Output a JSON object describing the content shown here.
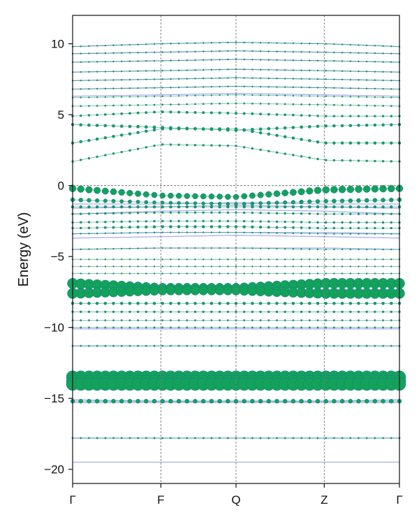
{
  "chart_data": {
    "type": "scatter",
    "title": "",
    "xlabel": "",
    "ylabel": "Energy (eV)",
    "ylim": [
      -21,
      12
    ],
    "grid": true,
    "legend": "none",
    "kpoints": [
      {
        "label": "Γ",
        "x": 0.0
      },
      {
        "label": "F",
        "x": 0.27
      },
      {
        "label": "Q",
        "x": 0.5
      },
      {
        "label": "Z",
        "x": 0.77
      },
      {
        "label": "Γ",
        "x": 1.0
      }
    ],
    "yticks": [
      {
        "value": 10,
        "label": "10"
      },
      {
        "value": 5,
        "label": "5"
      },
      {
        "value": 0,
        "label": "0"
      },
      {
        "value": -5,
        "label": "−5"
      },
      {
        "value": -10,
        "label": "−10"
      },
      {
        "value": -15,
        "label": "−15"
      },
      {
        "value": -20,
        "label": "−20"
      }
    ],
    "series": [
      {
        "role": "band-lines",
        "color": "#a8aef2",
        "bands": [
          {
            "x": [
              0,
              0.27,
              0.5,
              0.77,
              1
            ],
            "y": [
              -19.5,
              -19.5,
              -19.5,
              -19.5,
              -19.5
            ]
          },
          {
            "x": [
              0,
              0.27,
              0.5,
              0.77,
              1
            ],
            "y": [
              -17.8,
              -17.8,
              -17.8,
              -17.8,
              -17.8
            ]
          },
          {
            "x": [
              0,
              0.27,
              0.5,
              0.77,
              1
            ],
            "y": [
              -15.3,
              -15.3,
              -15.3,
              -15.3,
              -15.3
            ]
          },
          {
            "x": [
              0,
              0.27,
              0.5,
              0.77,
              1
            ],
            "y": [
              -15.1,
              -15.2,
              -15.2,
              -15.2,
              -15.1
            ]
          },
          {
            "x": [
              0,
              0.27,
              0.5,
              0.77,
              1
            ],
            "y": [
              -11.3,
              -11.3,
              -11.3,
              -11.3,
              -11.3
            ]
          },
          {
            "x": [
              0,
              0.27,
              0.5,
              0.77,
              1
            ],
            "y": [
              -10.1,
              -10.1,
              -10.1,
              -10.1,
              -10.1
            ]
          },
          {
            "x": [
              0,
              0.27,
              0.5,
              0.77,
              1
            ],
            "y": [
              -4.5,
              -4.4,
              -4.4,
              -4.4,
              -4.5
            ]
          },
          {
            "x": [
              0,
              0.27,
              0.5,
              0.77,
              1
            ],
            "y": [
              -3.7,
              -3.6,
              -3.5,
              -3.6,
              -3.7
            ]
          },
          {
            "x": [
              0,
              0.27,
              0.5,
              0.77,
              1
            ],
            "y": [
              -3.4,
              -3.3,
              -3.3,
              -3.3,
              -3.4
            ]
          },
          {
            "x": [
              0,
              0.27,
              0.5,
              0.77,
              1
            ],
            "y": [
              -2.0,
              -1.8,
              -1.7,
              -1.8,
              -2.0
            ]
          },
          {
            "x": [
              0,
              0.27,
              0.5,
              0.77,
              1
            ],
            "y": [
              -1.6,
              -1.5,
              -1.4,
              -1.5,
              -1.6
            ]
          },
          {
            "x": [
              0,
              0.27,
              0.5,
              0.77,
              1
            ],
            "y": [
              -1.3,
              -1.3,
              -1.2,
              -1.3,
              -1.3
            ]
          },
          {
            "x": [
              0,
              0.27,
              0.5,
              0.77,
              1
            ],
            "y": [
              6.3,
              6.4,
              6.5,
              6.4,
              6.3
            ]
          },
          {
            "x": [
              0,
              0.27,
              0.5,
              0.77,
              1
            ],
            "y": [
              6.8,
              6.9,
              7.0,
              6.9,
              6.8
            ]
          },
          {
            "x": [
              0,
              0.27,
              0.5,
              0.77,
              1
            ],
            "y": [
              7.4,
              7.5,
              7.6,
              7.5,
              7.4
            ]
          },
          {
            "x": [
              0,
              0.27,
              0.5,
              0.77,
              1
            ],
            "y": [
              8.0,
              8.1,
              8.2,
              8.1,
              8.0
            ]
          },
          {
            "x": [
              0,
              0.27,
              0.5,
              0.77,
              1
            ],
            "y": [
              8.7,
              8.8,
              8.9,
              8.8,
              8.7
            ]
          },
          {
            "x": [
              0,
              0.27,
              0.5,
              0.77,
              1
            ],
            "y": [
              9.3,
              9.4,
              9.5,
              9.4,
              9.3
            ]
          },
          {
            "x": [
              0,
              0.27,
              0.5,
              0.77,
              1
            ],
            "y": [
              9.8,
              10.0,
              10.1,
              10.0,
              9.8
            ]
          }
        ]
      },
      {
        "role": "projected-bands",
        "color": "#12a358",
        "edge_color": "#1f6fb0",
        "bands": [
          {
            "y": [
              1.7,
              2.9,
              2.8,
              1.8,
              1.7
            ],
            "w": [
              1.5,
              1.5,
              1.5,
              1.5,
              1.5
            ]
          },
          {
            "y": [
              3.0,
              4.0,
              4.0,
              3.0,
              3.0
            ],
            "w": [
              2,
              2,
              2,
              2,
              2
            ]
          },
          {
            "y": [
              4.3,
              4.1,
              3.9,
              4.2,
              4.3
            ],
            "w": [
              2,
              2.2,
              2.2,
              2,
              2
            ]
          },
          {
            "y": [
              4.9,
              5.2,
              5.1,
              4.9,
              4.9
            ],
            "w": [
              1.5,
              1.8,
              1.8,
              1.5,
              1.5
            ]
          },
          {
            "y": [
              5.6,
              5.7,
              5.8,
              5.7,
              5.6
            ],
            "w": [
              1.2,
              1.2,
              1.2,
              1.2,
              1.2
            ]
          },
          {
            "y": [
              6.2,
              6.3,
              6.4,
              6.3,
              6.2
            ],
            "w": [
              1,
              1,
              1,
              1,
              1
            ]
          },
          {
            "y": [
              6.8,
              6.9,
              7.0,
              6.9,
              6.8
            ],
            "w": [
              1,
              1,
              1,
              1,
              1
            ]
          },
          {
            "y": [
              7.4,
              7.5,
              7.6,
              7.5,
              7.4
            ],
            "w": [
              1,
              1,
              1,
              1,
              1
            ]
          },
          {
            "y": [
              8.0,
              8.1,
              8.2,
              8.1,
              8.0
            ],
            "w": [
              1,
              1,
              1,
              1,
              1
            ]
          },
          {
            "y": [
              8.7,
              8.8,
              8.9,
              8.8,
              8.7
            ],
            "w": [
              1,
              1,
              1,
              1,
              1
            ]
          },
          {
            "y": [
              9.3,
              9.4,
              9.5,
              9.4,
              9.3
            ],
            "w": [
              1,
              1,
              1,
              1,
              1
            ]
          },
          {
            "y": [
              9.8,
              10.0,
              10.1,
              10.0,
              9.8
            ],
            "w": [
              1,
              1,
              1,
              1,
              1
            ]
          },
          {
            "y": [
              -0.2,
              -0.7,
              -0.8,
              -0.3,
              -0.2
            ],
            "w": [
              5,
              4,
              4,
              5,
              5
            ]
          },
          {
            "y": [
              -1.0,
              -1.2,
              -1.3,
              -1.1,
              -1.0
            ],
            "w": [
              3,
              2.5,
              2.5,
              3,
              3
            ]
          },
          {
            "y": [
              -1.5,
              -1.5,
              -1.5,
              -1.5,
              -1.5
            ],
            "w": [
              2,
              2,
              2,
              2,
              2
            ]
          },
          {
            "y": [
              -2.0,
              -1.9,
              -1.9,
              -2.0,
              -2.0
            ],
            "w": [
              1.5,
              1.5,
              1.5,
              1.5,
              1.5
            ]
          },
          {
            "y": [
              -2.6,
              -2.5,
              -2.5,
              -2.6,
              -2.6
            ],
            "w": [
              1.5,
              1.5,
              1.5,
              1.5,
              1.5
            ]
          },
          {
            "y": [
              -3.0,
              -2.9,
              -2.9,
              -3.0,
              -3.0
            ],
            "w": [
              1.5,
              2,
              2,
              1.5,
              1.5
            ]
          },
          {
            "y": [
              -3.4,
              -3.3,
              -3.3,
              -3.4,
              -3.4
            ],
            "w": [
              1,
              1,
              1,
              1,
              1
            ]
          },
          {
            "y": [
              -4.5,
              -4.4,
              -4.4,
              -4.5,
              -4.5
            ],
            "w": [
              1,
              1,
              1,
              1,
              1
            ]
          },
          {
            "y": [
              -5.2,
              -5.2,
              -5.2,
              -5.2,
              -5.2
            ],
            "w": [
              1,
              1,
              1,
              1,
              1
            ]
          },
          {
            "y": [
              -5.7,
              -5.7,
              -5.7,
              -5.7,
              -5.7
            ],
            "w": [
              1,
              1,
              1,
              1,
              1
            ]
          },
          {
            "y": [
              -6.2,
              -6.2,
              -6.2,
              -6.2,
              -6.2
            ],
            "w": [
              1,
              1,
              1,
              1,
              1
            ]
          },
          {
            "y": [
              -6.9,
              -7.2,
              -7.2,
              -6.9,
              -6.9
            ],
            "w": [
              7.5,
              6.5,
              6.5,
              7.5,
              7.5
            ]
          },
          {
            "y": [
              -7.6,
              -7.4,
              -7.4,
              -7.6,
              -7.6
            ],
            "w": [
              7.5,
              6.5,
              6.5,
              7.5,
              7.5
            ]
          },
          {
            "y": [
              -8.3,
              -8.3,
              -8.3,
              -8.3,
              -8.3
            ],
            "w": [
              2,
              2,
              2,
              2,
              2
            ]
          },
          {
            "y": [
              -8.9,
              -8.9,
              -8.9,
              -8.9,
              -8.9
            ],
            "w": [
              1.5,
              1.5,
              1.5,
              1.5,
              1.5
            ]
          },
          {
            "y": [
              -9.5,
              -9.5,
              -9.5,
              -9.5,
              -9.5
            ],
            "w": [
              1.2,
              1.2,
              1.2,
              1.2,
              1.2
            ]
          },
          {
            "y": [
              -10.0,
              -10.0,
              -10.0,
              -10.0,
              -10.0
            ],
            "w": [
              1.2,
              1.2,
              1.2,
              1.2,
              1.2
            ]
          },
          {
            "y": [
              -11.3,
              -11.3,
              -11.3,
              -11.3,
              -11.3
            ],
            "w": [
              1.2,
              1.2,
              1.2,
              1.2,
              1.2
            ]
          },
          {
            "y": [
              -13.5,
              -13.5,
              -13.5,
              -13.5,
              -13.5
            ],
            "w": [
              9,
              9,
              9,
              9,
              9
            ]
          },
          {
            "y": [
              -13.8,
              -13.8,
              -13.8,
              -13.8,
              -13.8
            ],
            "w": [
              9,
              9,
              9,
              9,
              9
            ]
          },
          {
            "y": [
              -14.0,
              -14.0,
              -14.0,
              -14.0,
              -14.0
            ],
            "w": [
              9,
              9,
              9,
              9,
              9
            ]
          },
          {
            "y": [
              -15.2,
              -15.2,
              -15.2,
              -15.2,
              -15.2
            ],
            "w": [
              3,
              3,
              3,
              3,
              3
            ]
          },
          {
            "y": [
              -17.8,
              -17.8,
              -17.8,
              -17.8,
              -17.8
            ],
            "w": [
              1.2,
              1.2,
              1.2,
              1.2,
              1.2
            ]
          }
        ]
      }
    ]
  }
}
